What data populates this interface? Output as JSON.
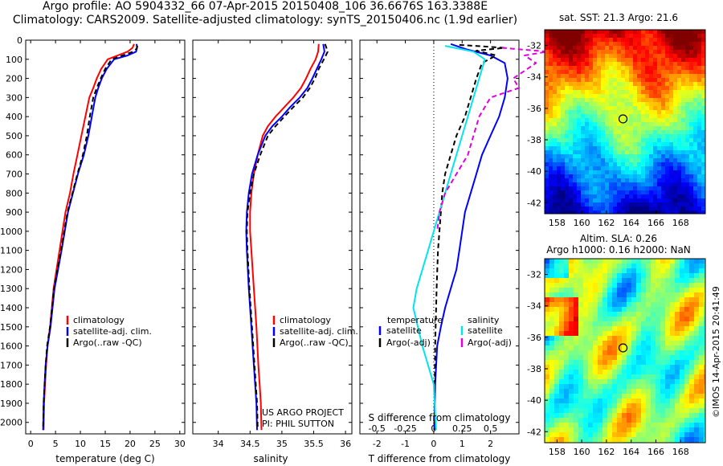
{
  "header": {
    "line1": "Argo profile: AO 5904332_66 07-Apr-2015 20150408_106 36.6676S 163.3388E",
    "line2": "Climatology: CARS2009. Satellite-adjusted climatology: synTS_20150406.nc (1.9d earlier)"
  },
  "credit": "©IMOS 14-Apr-2015 20:41:49",
  "project": {
    "line1": "US ARGO PROJECT",
    "line2": "PI: PHIL SUTTON"
  },
  "colors": {
    "climatology": "#ff0000",
    "satellite": "#0000ff",
    "argo": "#000000",
    "sat_s": "#00e5ee",
    "argo_s": "#e000e0"
  },
  "chart_data": [
    {
      "type": "line",
      "id": "temperature",
      "xlabel": "temperature (deg C)",
      "xlim": [
        -1,
        31
      ],
      "xticks": [
        0,
        5,
        10,
        15,
        20,
        25,
        30
      ],
      "ylim": [
        2060,
        0
      ],
      "yticks": [
        0,
        100,
        200,
        300,
        400,
        500,
        600,
        700,
        800,
        900,
        1000,
        1100,
        1200,
        1300,
        1400,
        1500,
        1600,
        1700,
        1800,
        1900,
        2000
      ],
      "legend": [
        "climatology",
        "satellite-adj. clim.",
        "Argo(..raw -QC)"
      ],
      "series": [
        {
          "name": "climatology",
          "style": "solid",
          "x": [
            20.8,
            20.5,
            19.5,
            17.5,
            15.5,
            14.2,
            13.3,
            12.6,
            11.8,
            11.0,
            10.2,
            9.4,
            8.6,
            7.9,
            7.0,
            5.8,
            4.6,
            3.9,
            3.4,
            3.1,
            2.9,
            2.7,
            2.6
          ],
          "y": [
            20,
            40,
            60,
            80,
            100,
            150,
            200,
            250,
            300,
            400,
            500,
            600,
            700,
            800,
            900,
            1100,
            1300,
            1500,
            1600,
            1700,
            1800,
            1900,
            2040
          ]
        },
        {
          "name": "satellite-adj. clim.",
          "style": "solid",
          "x": [
            21.3,
            21.4,
            21.2,
            19.5,
            16.8,
            15.3,
            14.3,
            13.6,
            13.0,
            12.3,
            11.6,
            10.7,
            9.5,
            8.5,
            7.5,
            6.2,
            4.8,
            4.0,
            3.4,
            3.0,
            2.8,
            2.6,
            2.5
          ],
          "y": [
            20,
            40,
            60,
            80,
            100,
            150,
            200,
            250,
            300,
            400,
            500,
            600,
            700,
            800,
            900,
            1100,
            1300,
            1500,
            1600,
            1700,
            1800,
            1900,
            2040
          ]
        },
        {
          "name": "Argo(..raw -QC)",
          "style": "dashed",
          "x": [
            21.5,
            21.3,
            20.6,
            18.5,
            16.3,
            15.0,
            14.1,
            13.3,
            12.6,
            11.9,
            11.3,
            10.5,
            9.4,
            8.4,
            7.4,
            6.1,
            4.7,
            3.9,
            3.3,
            3.0,
            2.8,
            2.6,
            2.5
          ],
          "y": [
            30,
            45,
            60,
            80,
            100,
            150,
            200,
            250,
            300,
            400,
            500,
            600,
            700,
            800,
            900,
            1100,
            1300,
            1500,
            1600,
            1700,
            1800,
            1900,
            2040
          ]
        }
      ]
    },
    {
      "type": "line",
      "id": "salinity",
      "xlabel": "salinity",
      "xlim": [
        33.6,
        36.1
      ],
      "xticks": [
        34,
        34.5,
        35,
        35.5,
        36
      ],
      "ylim": [
        2060,
        0
      ],
      "yticks": [
        0,
        100,
        200,
        300,
        400,
        500,
        600,
        700,
        800,
        900,
        1000,
        1100,
        1200,
        1300,
        1400,
        1500,
        1600,
        1700,
        1800,
        1900,
        2000
      ],
      "legend": [
        "climatology",
        "satellite-adj. clim.",
        "Argo(..raw -QC)"
      ],
      "series": [
        {
          "name": "climatology",
          "style": "solid",
          "x": [
            35.58,
            35.57,
            35.53,
            35.45,
            35.38,
            35.3,
            35.18,
            35.04,
            34.9,
            34.78,
            34.7,
            34.62,
            34.56,
            34.52,
            34.5,
            34.5,
            34.52,
            34.56,
            34.6,
            34.63,
            34.65,
            34.67,
            34.68
          ],
          "y": [
            20,
            60,
            100,
            150,
            200,
            250,
            300,
            350,
            400,
            450,
            500,
            600,
            700,
            800,
            900,
            1000,
            1100,
            1300,
            1500,
            1700,
            1800,
            1900,
            2040
          ]
        },
        {
          "name": "satellite-adj. clim.",
          "style": "solid",
          "x": [
            35.65,
            35.67,
            35.62,
            35.55,
            35.48,
            35.4,
            35.28,
            35.13,
            35.0,
            34.85,
            34.74,
            34.62,
            34.53,
            34.48,
            34.45,
            34.44,
            34.45,
            34.48,
            34.52,
            34.56,
            34.58,
            34.6,
            34.61
          ],
          "y": [
            20,
            60,
            100,
            150,
            200,
            250,
            300,
            350,
            400,
            450,
            500,
            600,
            700,
            800,
            900,
            1000,
            1100,
            1300,
            1500,
            1700,
            1800,
            1900,
            2040
          ]
        },
        {
          "name": "Argo(..raw -QC)",
          "style": "dashed",
          "x": [
            35.68,
            35.72,
            35.66,
            35.58,
            35.52,
            35.44,
            35.33,
            35.18,
            35.04,
            34.9,
            34.78,
            34.66,
            34.56,
            34.5,
            34.46,
            34.45,
            34.46,
            34.49,
            34.53,
            34.57,
            34.59,
            34.61,
            34.62
          ],
          "y": [
            20,
            60,
            100,
            150,
            200,
            250,
            300,
            350,
            400,
            450,
            500,
            600,
            700,
            800,
            900,
            1000,
            1100,
            1300,
            1500,
            1700,
            1800,
            1900,
            2040
          ]
        }
      ]
    },
    {
      "type": "line",
      "id": "difference",
      "xlabel": "T difference from climatology",
      "xlabel2": "S difference from climatology",
      "xlim": [
        -2.6,
        3.0
      ],
      "xticks": [
        -2,
        -1,
        0,
        1,
        2
      ],
      "xticks2": [
        -0.5,
        -0.25,
        0,
        0.25,
        0.5
      ],
      "xticks2_labels": [
        "-0.5",
        "-0.25",
        "0",
        "0.25",
        "0.5"
      ],
      "ylim": [
        2060,
        0
      ],
      "yticks": [
        0,
        100,
        200,
        300,
        400,
        500,
        600,
        700,
        800,
        900,
        1000,
        1100,
        1200,
        1300,
        1400,
        1500,
        1600,
        1700,
        1800,
        1900,
        2000
      ],
      "legend_titles": [
        "temperature",
        "salinity"
      ],
      "legend": [
        "satellite",
        "Argo(-adj)",
        "satellite",
        "Argo(-adj)"
      ],
      "series": [
        {
          "name": "satellite",
          "group": "temperature",
          "style": "solid",
          "x": [
            0.6,
            1.2,
            2.0,
            2.5,
            2.6,
            2.5,
            2.3,
            2.0,
            1.7,
            1.5,
            1.3,
            1.1,
            1.0,
            0.9,
            0.8,
            0.6,
            0.4,
            0.25,
            0.12,
            0.05,
            0.02
          ],
          "y": [
            20,
            50,
            80,
            120,
            200,
            300,
            400,
            500,
            600,
            700,
            800,
            900,
            1000,
            1100,
            1200,
            1300,
            1400,
            1500,
            1600,
            1800,
            2040
          ]
        },
        {
          "name": "Argo(-adj)",
          "group": "temperature",
          "style": "dashed",
          "x": [
            0.9,
            2.5,
            1.5,
            2.2,
            1.7,
            1.5,
            1.3,
            1.1,
            0.8,
            0.6,
            0.4,
            0.3,
            0.25,
            0.2,
            0.15,
            0.1,
            0.05,
            0.02
          ],
          "y": [
            25,
            40,
            55,
            80,
            120,
            200,
            300,
            400,
            500,
            600,
            700,
            800,
            900,
            1000,
            1100,
            1300,
            1600,
            2040
          ]
        },
        {
          "name": "satellite",
          "group": "salinity",
          "style": "solid",
          "x": [
            0.1,
            0.35,
            0.45,
            0.4,
            0.35,
            0.3,
            0.25,
            0.2,
            0.15,
            0.1,
            0.05,
            0.0,
            -0.05,
            -0.1,
            -0.15,
            -0.18,
            -0.1,
            0.0,
            0.02
          ],
          "y": [
            30,
            60,
            100,
            200,
            300,
            400,
            500,
            600,
            700,
            800,
            900,
            1000,
            1100,
            1200,
            1300,
            1400,
            1600,
            1800,
            2040
          ]
        },
        {
          "name": "Argo(-adj)",
          "group": "salinity",
          "style": "dashed",
          "x": [
            0.6,
            1.0,
            0.8,
            0.9,
            0.7,
            0.75,
            0.5,
            0.4,
            0.35,
            0.3,
            0.2,
            0.1,
            0.05,
            0.03
          ],
          "y": [
            40,
            60,
            80,
            120,
            200,
            250,
            300,
            400,
            500,
            600,
            700,
            800,
            900,
            1000
          ]
        }
      ]
    },
    {
      "type": "heatmap",
      "id": "sst-map",
      "title": "sat. SST: 21.3 Argo: 21.6",
      "xticks": [
        158,
        160,
        162,
        164,
        166,
        168
      ],
      "yticks": [
        -32,
        -34,
        -36,
        -38,
        -40,
        -42
      ],
      "xlim": [
        157,
        170
      ],
      "ylim": [
        -42.7,
        -31
      ],
      "marker": {
        "lon": 163.34,
        "lat": -36.67
      }
    },
    {
      "type": "heatmap",
      "id": "sla-map",
      "title": "Altim. SLA: 0.26",
      "subtitle": "Argo h1000: 0.16 h2000: NaN",
      "xticks": [
        158,
        160,
        162,
        164,
        166,
        168
      ],
      "yticks": [
        -32,
        -34,
        -36,
        -38,
        -40,
        -42
      ],
      "xlim": [
        157,
        170
      ],
      "ylim": [
        -42.7,
        -31
      ],
      "marker": {
        "lon": 163.34,
        "lat": -36.67
      }
    }
  ]
}
